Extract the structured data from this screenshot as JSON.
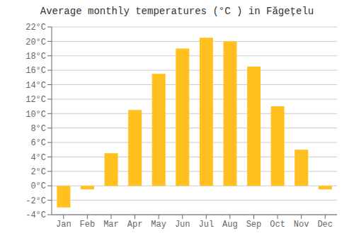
{
  "chart_data": {
    "type": "bar",
    "title": "Average monthly temperatures (°C ) in Făgețelu",
    "categories": [
      "Jan",
      "Feb",
      "Mar",
      "Apr",
      "May",
      "Jun",
      "Jul",
      "Aug",
      "Sep",
      "Oct",
      "Nov",
      "Dec"
    ],
    "values": [
      -3.0,
      -0.5,
      4.5,
      10.5,
      15.5,
      19.0,
      20.5,
      20.0,
      16.5,
      11.0,
      5.0,
      -0.5
    ],
    "color": "#FFC020",
    "ylim": [
      -4,
      22
    ],
    "yticks": [
      {
        "value": -4,
        "label": "-4°C"
      },
      {
        "value": -2,
        "label": "-2°C"
      },
      {
        "value": 0,
        "label": "0°C"
      },
      {
        "value": 2,
        "label": "2°C"
      },
      {
        "value": 4,
        "label": "4°C"
      },
      {
        "value": 6,
        "label": "6°C"
      },
      {
        "value": 8,
        "label": "8°C"
      },
      {
        "value": 10,
        "label": "10°C"
      },
      {
        "value": 12,
        "label": "12°C"
      },
      {
        "value": 14,
        "label": "14°C"
      },
      {
        "value": 16,
        "label": "16°C"
      },
      {
        "value": 18,
        "label": "18°C"
      },
      {
        "value": 20,
        "label": "20°C"
      },
      {
        "value": 22,
        "label": "22°C"
      }
    ],
    "grid": true
  }
}
